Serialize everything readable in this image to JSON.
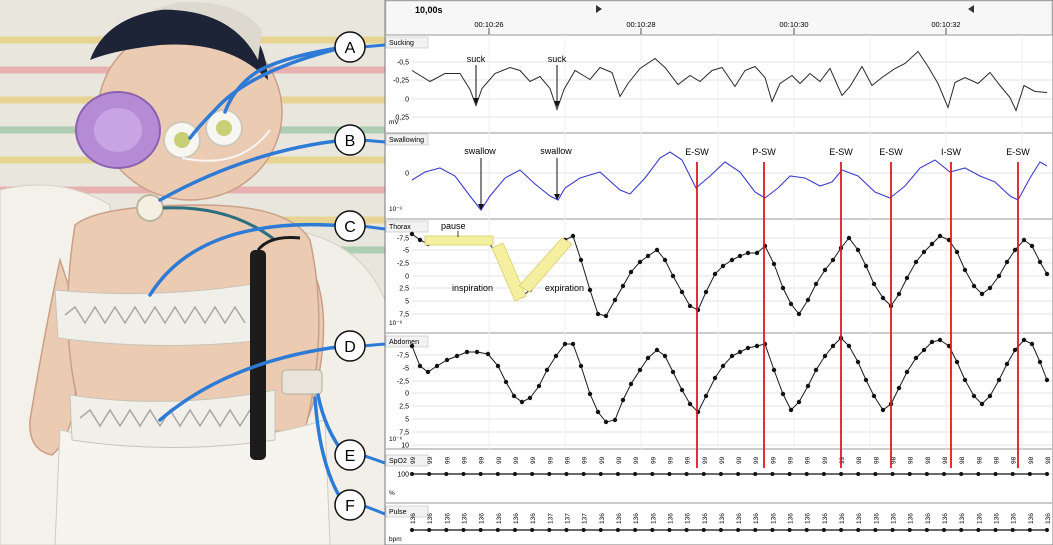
{
  "markers": [
    "A",
    "B",
    "C",
    "D",
    "E",
    "F"
  ],
  "recording": {
    "window": "10,00s",
    "times": [
      "00:10:26",
      "00:10:28",
      "00:10:30",
      "00:10:32"
    ]
  },
  "channels": [
    {
      "key": "sucking",
      "name": "Sucking",
      "unit": "mV",
      "ticks": [
        "-0,5",
        "-0,25",
        "0",
        "0,25"
      ]
    },
    {
      "key": "swallowing",
      "name": "Swallowing",
      "unit": "10⁻³",
      "ticks": [
        "0"
      ]
    },
    {
      "key": "thorax",
      "name": "Thorax",
      "unit": "10⁻⁶",
      "ticks": [
        "-7,5",
        "-5",
        "-2,5",
        "0",
        "2,5",
        "5",
        "7,5"
      ]
    },
    {
      "key": "abdomen",
      "name": "Abdomen",
      "unit": "10⁻⁶",
      "ticks": [
        "-7,5",
        "-5",
        "-2,5",
        "0",
        "2,5",
        "5",
        "7,5",
        "10"
      ]
    },
    {
      "key": "spo2",
      "name": "SpO2",
      "unit": "%",
      "ticks": [
        "100"
      ]
    },
    {
      "key": "pulse",
      "name": "Pulse",
      "unit": "bpm",
      "ticks": []
    }
  ],
  "annotations": {
    "suck": "suck",
    "swallow": "swallow",
    "pause": "pause",
    "inspiration": "inspiration",
    "expiration": "expiration"
  },
  "event_labels": [
    "E-SW",
    "P-SW",
    "E-SW",
    "E-SW",
    "I-SW",
    "E-SW"
  ],
  "spo2_values": [
    "99",
    "99",
    "99",
    "99",
    "99",
    "99",
    "99",
    "99",
    "99",
    "99",
    "99",
    "99",
    "99",
    "99",
    "99",
    "99",
    "99",
    "99",
    "99",
    "99",
    "99",
    "99",
    "99",
    "99",
    "99",
    "99",
    "98",
    "98",
    "98",
    "98",
    "98",
    "98",
    "98",
    "98",
    "98",
    "98",
    "98",
    "98"
  ],
  "pulse_values": [
    "136",
    "136",
    "136",
    "136",
    "136",
    "136",
    "136",
    "136",
    "137",
    "137",
    "137",
    "136",
    "136",
    "136",
    "136",
    "136",
    "136",
    "136",
    "136",
    "136",
    "136",
    "136",
    "136",
    "136",
    "136",
    "136",
    "136",
    "136",
    "136",
    "136",
    "136",
    "136",
    "136",
    "136",
    "136",
    "136",
    "136",
    "136"
  ],
  "colors": {
    "event_line": "#e0191c",
    "pointer": "#2e7bd6",
    "swallow_trace": "#3a3ec7",
    "highlight": "#f4f0a0"
  }
}
